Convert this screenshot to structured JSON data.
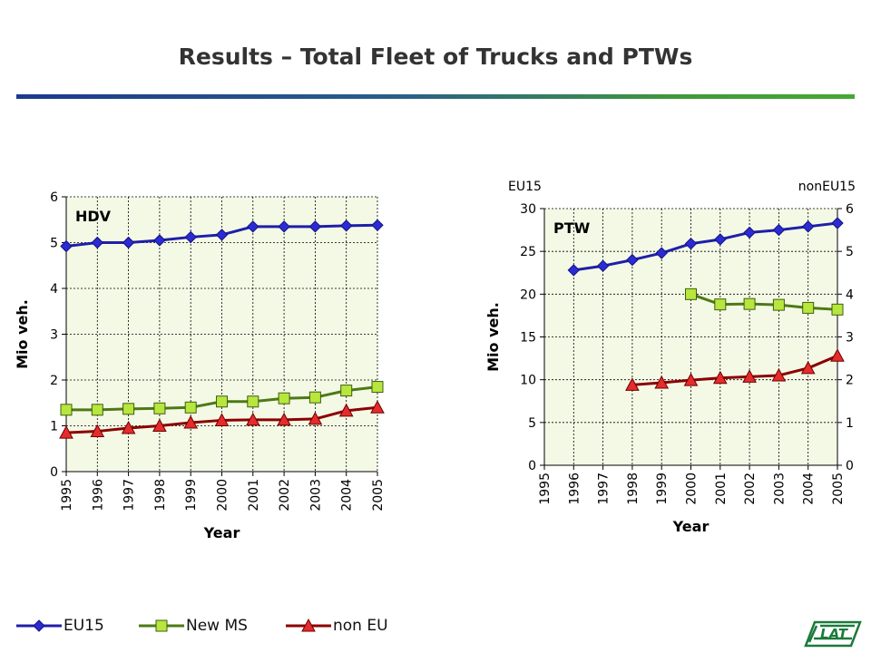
{
  "slide": {
    "title": "Results – Total Fleet of Trucks and PTWs"
  },
  "legend": {
    "items": [
      {
        "label": "EU15",
        "color": "#1f1fa8",
        "marker": "diamond"
      },
      {
        "label": "New MS",
        "color": "#4d7a14",
        "fill": "#b8e63c",
        "marker": "square"
      },
      {
        "label": "non EU",
        "color": "#8b0000",
        "fill": "#e52b2b",
        "marker": "triangle"
      }
    ]
  },
  "logo": {
    "text": "LAT",
    "color": "#1a7a3a"
  },
  "chart_data": [
    {
      "type": "line",
      "panel_label": "HDV",
      "xlabel": "Year",
      "ylabel": "Mio veh.",
      "ylim": [
        0,
        6
      ],
      "yticks": [
        0,
        1,
        2,
        3,
        4,
        5,
        6
      ],
      "x": [
        "1995",
        "1996",
        "1997",
        "1998",
        "1999",
        "2000",
        "2001",
        "2002",
        "2003",
        "2004",
        "2005"
      ],
      "grid": true,
      "background": "#f4f9e6",
      "series": [
        {
          "name": "EU15",
          "axis": "left",
          "values": [
            4.92,
            5.0,
            5.0,
            5.05,
            5.12,
            5.17,
            5.35,
            5.35,
            5.35,
            5.37,
            5.38
          ]
        },
        {
          "name": "New MS",
          "axis": "left",
          "values": [
            1.35,
            1.35,
            1.37,
            1.38,
            1.4,
            1.53,
            1.53,
            1.6,
            1.62,
            1.77,
            1.85
          ]
        },
        {
          "name": "non EU",
          "axis": "left",
          "values": [
            0.85,
            0.88,
            0.95,
            1.0,
            1.07,
            1.12,
            1.13,
            1.13,
            1.15,
            1.33,
            1.4
          ]
        }
      ]
    },
    {
      "type": "line",
      "panel_label": "PTW",
      "xlabel": "Year",
      "ylabel": "Mio veh.",
      "left_axis_title": "EU15",
      "right_axis_title": "nonEU15",
      "ylim": [
        0,
        30
      ],
      "yticks": [
        0,
        5,
        10,
        15,
        20,
        25,
        30
      ],
      "y2lim": [
        0,
        6
      ],
      "y2ticks": [
        0,
        1,
        2,
        3,
        4,
        5,
        6
      ],
      "x": [
        "1995",
        "1996",
        "1997",
        "1998",
        "1999",
        "2000",
        "2001",
        "2002",
        "2003",
        "2004",
        "2005"
      ],
      "grid": true,
      "background": "#f4f9e6",
      "series": [
        {
          "name": "EU15",
          "axis": "left",
          "values": [
            null,
            22.8,
            23.3,
            24.0,
            24.8,
            25.9,
            26.4,
            27.2,
            27.5,
            27.9,
            28.3
          ]
        },
        {
          "name": "New MS",
          "axis": "right",
          "values": [
            null,
            null,
            null,
            null,
            null,
            4.0,
            3.76,
            3.77,
            3.75,
            3.68,
            3.64
          ]
        },
        {
          "name": "non EU",
          "axis": "right",
          "values": [
            null,
            null,
            null,
            1.88,
            1.93,
            1.99,
            2.04,
            2.07,
            2.1,
            2.27,
            2.56
          ]
        }
      ]
    }
  ]
}
